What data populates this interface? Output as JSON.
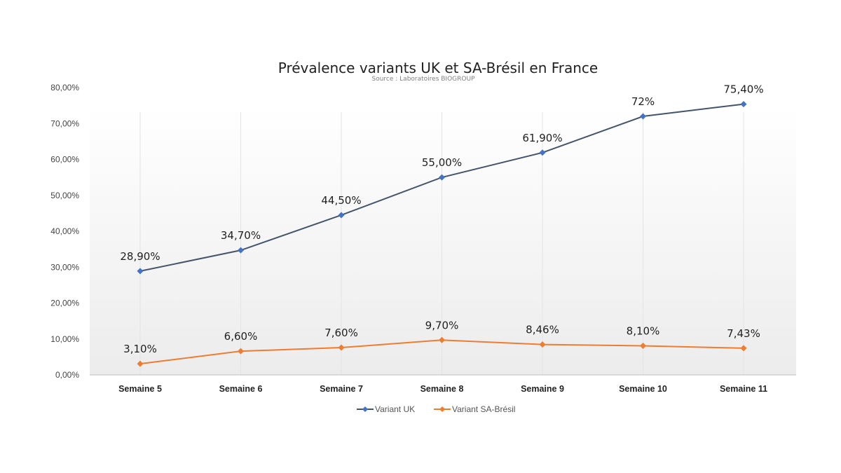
{
  "chart_data": {
    "type": "line",
    "title": "Prévalence variants UK et SA-Brésil en France",
    "subtitle": "Source : Laboratoires BIOGROUP",
    "categories": [
      "Semaine 5",
      "Semaine 6",
      "Semaine 7",
      "Semaine 8",
      "Semaine 9",
      "Semaine 10",
      "Semaine 11"
    ],
    "ylim": [
      0,
      80
    ],
    "yticks": [
      0,
      10,
      20,
      30,
      40,
      50,
      60,
      70,
      80
    ],
    "ytick_labels": [
      "0,00%",
      "10,00%",
      "20,00%",
      "30,00%",
      "40,00%",
      "50,00%",
      "60,00%",
      "70,00%",
      "80,00%"
    ],
    "xlabel": "",
    "ylabel": "",
    "grid": "vertical-light",
    "legend_position": "bottom",
    "series": [
      {
        "name": "Variant UK",
        "color": "#44546a",
        "marker_color": "#4472c4",
        "values": [
          28.9,
          34.7,
          44.5,
          55.0,
          61.9,
          72.0,
          75.4
        ],
        "labels": [
          "28,90%",
          "34,70%",
          "44,50%",
          "55,00%",
          "61,90%",
          "72%",
          "75,40%"
        ]
      },
      {
        "name": "Variant SA-Brésil",
        "color": "#ed7d31",
        "marker_color": "#ed7d31",
        "values": [
          3.1,
          6.6,
          7.6,
          9.7,
          8.46,
          8.1,
          7.43
        ],
        "labels": [
          "3,10%",
          "6,60%",
          "7,60%",
          "9,70%",
          "8,46%",
          "8,10%",
          "7,43%"
        ]
      }
    ]
  }
}
